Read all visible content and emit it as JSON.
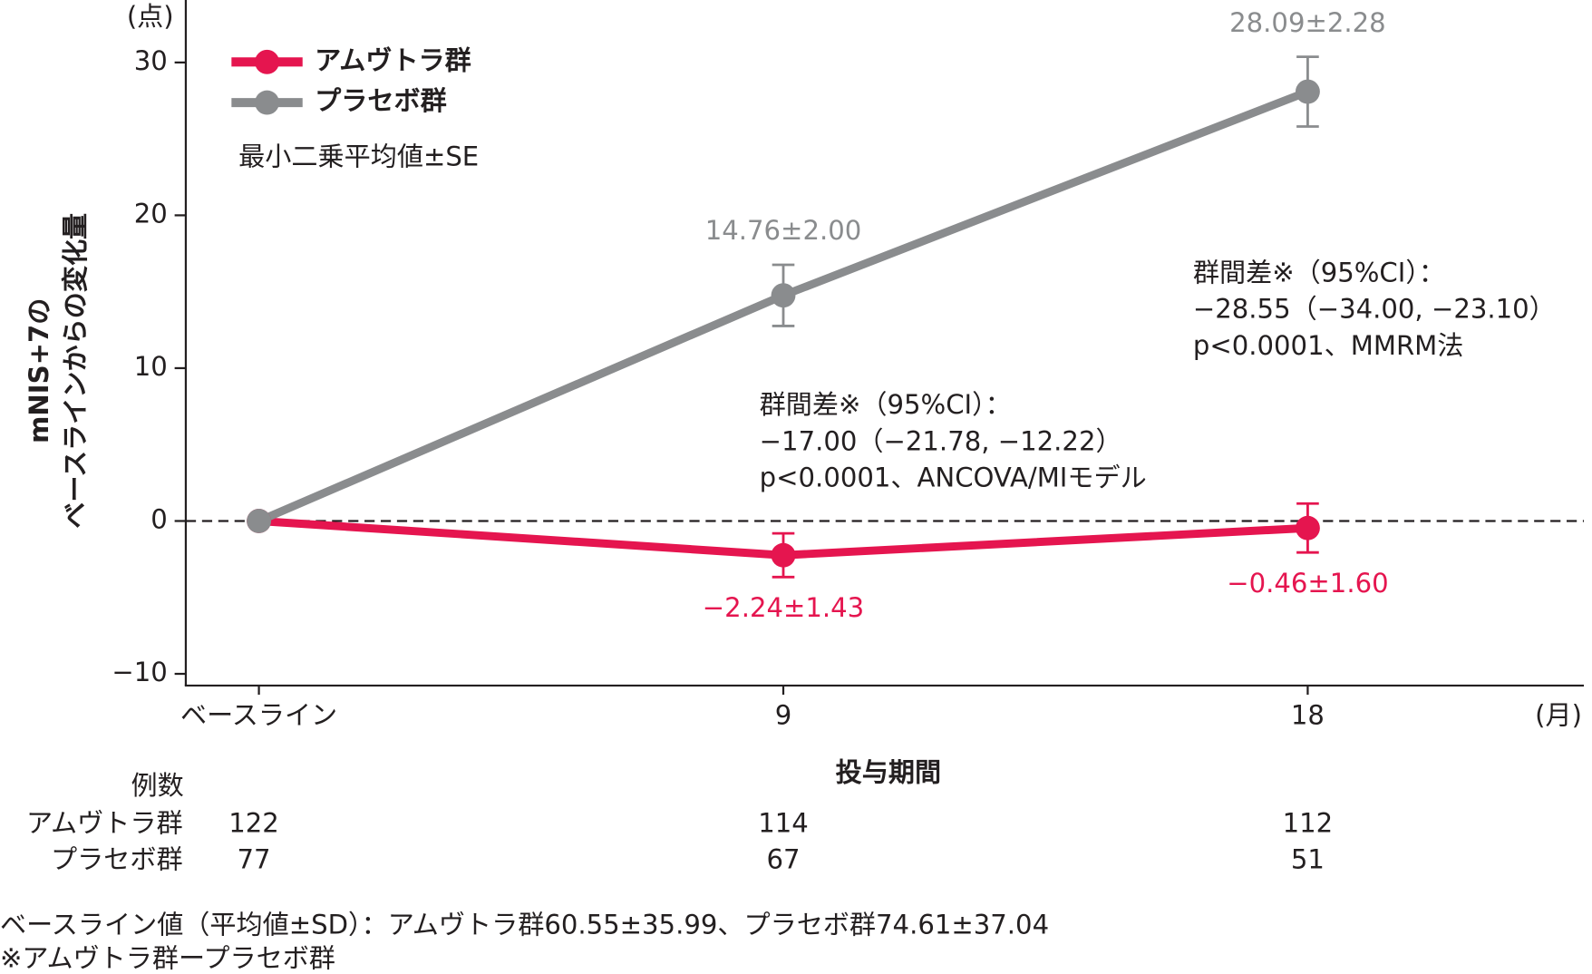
{
  "chart_data": {
    "type": "line",
    "y_unit": "(点)",
    "x_unit": "(月)",
    "y_title": [
      "mNIS+7の",
      "ベースラインからの変化量"
    ],
    "x_title": "投与期間",
    "categories": [
      "ベースライン",
      "9",
      "18"
    ],
    "series": [
      {
        "name": "アムヴトラ群",
        "color": "#e5154f",
        "values": [
          0,
          -2.24,
          -0.46
        ],
        "errors": [
          null,
          1.43,
          1.6
        ],
        "value_labels": [
          null,
          "−2.24±1.43",
          "−0.46±1.60"
        ],
        "label_side": "below"
      },
      {
        "name": "プラセボ群",
        "color": "#8a8c8e",
        "values": [
          0,
          14.76,
          28.09
        ],
        "errors": [
          null,
          2.0,
          2.28
        ],
        "value_labels": [
          null,
          "14.76±2.00",
          "28.09±2.28"
        ],
        "label_side": "above"
      }
    ],
    "legend_note": "最小二乗平均値±SE",
    "legend": "upper left",
    "ylim": [
      -10.8,
      34
    ],
    "yticks": [
      {
        "value": -10,
        "label": "−10"
      },
      0,
      10,
      20,
      30
    ],
    "grid": false,
    "reference_line": 0,
    "annotations": [
      {
        "lines": [
          "群間差※（95%CI）：",
          "−17.00（−21.78, −12.22）",
          "p<0.0001、ANCOVA/MIモデル"
        ]
      },
      {
        "lines": [
          "群間差※（95%CI）：",
          "−28.55（−34.00, −23.10）",
          "p<0.0001、MMRM法"
        ]
      }
    ],
    "n_table": {
      "title": "例数",
      "rows": [
        {
          "name": "アムヴトラ群",
          "values": [
            122,
            114,
            112
          ]
        },
        {
          "name": "プラセボ群",
          "values": [
            77,
            67,
            51
          ]
        }
      ]
    },
    "footnotes": [
      "ベースライン値（平均値±SD）：アムヴトラ群60.55±35.99、プラセボ群74.61±37.04",
      "※アムヴトラ群ープラセボ群"
    ]
  }
}
